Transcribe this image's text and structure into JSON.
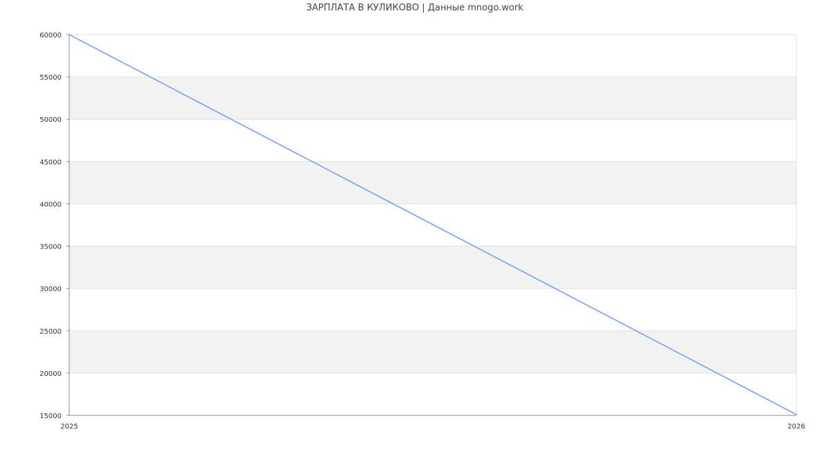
{
  "chart_data": {
    "type": "line",
    "title": "ЗАРПЛАТА В КУЛИКОВО | Данные mnogo.work",
    "xlabel": "",
    "ylabel": "",
    "x": [
      "2025",
      "2026"
    ],
    "series": [
      {
        "values": [
          60000,
          15100
        ]
      }
    ],
    "ylim": [
      15000,
      60000
    ],
    "yticks": [
      "15000",
      "20000",
      "25000",
      "30000",
      "35000",
      "40000",
      "45000",
      "50000",
      "55000",
      "60000"
    ],
    "xticks": [
      "2025",
      "2026"
    ],
    "grid": true,
    "legend": "none",
    "colors": {
      "line": "#6f9ff5",
      "band": "#f2f2f2",
      "grid": "#e0e0e0",
      "axis": "#888888"
    }
  }
}
